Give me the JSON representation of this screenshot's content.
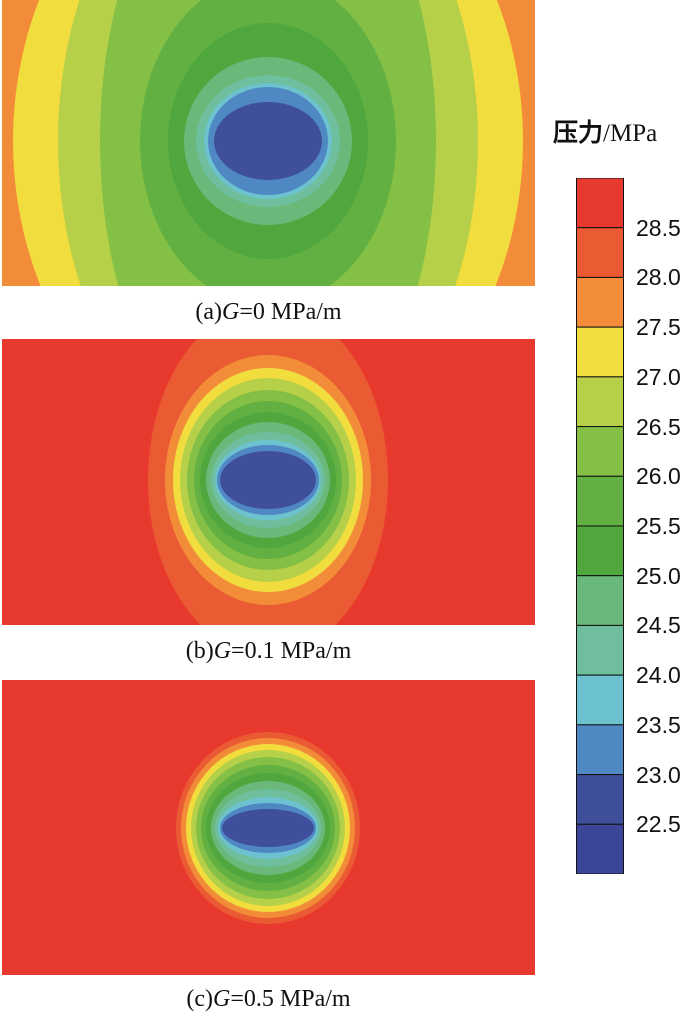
{
  "chart_data": {
    "type": "heatmap",
    "colorbar": {
      "title": "压力",
      "unit": "/MPa",
      "tick_labels": [
        "28.5",
        "28.0",
        "27.5",
        "27.0",
        "26.5",
        "26.0",
        "25.5",
        "25.0",
        "24.5",
        "24.0",
        "23.5",
        "23.0",
        "22.5"
      ],
      "levels": [
        28.75,
        28.5,
        28.0,
        27.5,
        27.0,
        26.5,
        26.0,
        25.5,
        25.0,
        24.5,
        24.0,
        23.5,
        23.0,
        22.5
      ],
      "colors": [
        "#e8392e",
        "#ea5a33",
        "#f28c38",
        "#f2dd3f",
        "#b6d04a",
        "#83c045",
        "#63b042",
        "#4fa73d",
        "#6ab87a",
        "#6fbf9f",
        "#6cc3cf",
        "#5088c4",
        "#404f9c",
        "#3b4698"
      ]
    },
    "panels": [
      {
        "caption_prefix": "(a)",
        "caption_var": "G",
        "caption_value": "=0 MPa/m",
        "gradient": 0,
        "contours": [
          {
            "level": 28.5,
            "rx": 420,
            "ry": 320
          },
          {
            "level": 28.0,
            "rx": 300,
            "ry": 320
          },
          {
            "level": 27.5,
            "rx": 255,
            "ry": 320
          },
          {
            "level": 27.0,
            "rx": 210,
            "ry": 320
          },
          {
            "level": 26.5,
            "rx": 168,
            "ry": 320
          },
          {
            "level": 26.0,
            "rx": 128,
            "ry": 165
          },
          {
            "level": 25.5,
            "rx": 100,
            "ry": 118
          },
          {
            "level": 25.0,
            "rx": 84,
            "ry": 84
          },
          {
            "level": 24.5,
            "rx": 72,
            "ry": 66
          },
          {
            "level": 24.0,
            "rx": 64,
            "ry": 58
          },
          {
            "level": 23.5,
            "rx": 60,
            "ry": 54
          },
          {
            "level": 23.0,
            "rx": 54,
            "ry": 39
          }
        ]
      },
      {
        "caption_prefix": "(b)",
        "caption_var": "G",
        "caption_value": "=0.1 MPa/m",
        "gradient": 0.1,
        "contours": [
          {
            "level": 28.5,
            "rx": 120,
            "ry": 175
          },
          {
            "level": 28.0,
            "rx": 103,
            "ry": 125
          },
          {
            "level": 27.5,
            "rx": 95,
            "ry": 112
          },
          {
            "level": 27.0,
            "rx": 88,
            "ry": 102
          },
          {
            "level": 26.5,
            "rx": 81,
            "ry": 90
          },
          {
            "level": 26.0,
            "rx": 74,
            "ry": 79
          },
          {
            "level": 25.5,
            "rx": 68,
            "ry": 68
          },
          {
            "level": 25.0,
            "rx": 62,
            "ry": 58
          },
          {
            "level": 24.5,
            "rx": 57,
            "ry": 48
          },
          {
            "level": 24.0,
            "rx": 53,
            "ry": 40
          },
          {
            "level": 23.5,
            "rx": 51,
            "ry": 35
          },
          {
            "level": 23.0,
            "rx": 48,
            "ry": 29
          }
        ]
      },
      {
        "caption_prefix": "(c)",
        "caption_var": "G",
        "caption_value": "=0.5 MPa/m",
        "gradient": 0.5,
        "contours": [
          {
            "level": 28.5,
            "rx": 92,
            "ry": 96
          },
          {
            "level": 28.0,
            "rx": 87,
            "ry": 90
          },
          {
            "level": 27.5,
            "rx": 82,
            "ry": 84
          },
          {
            "level": 27.0,
            "rx": 77,
            "ry": 78
          },
          {
            "level": 26.5,
            "rx": 72,
            "ry": 71
          },
          {
            "level": 26.0,
            "rx": 67,
            "ry": 63
          },
          {
            "level": 25.5,
            "rx": 62,
            "ry": 55
          },
          {
            "level": 25.0,
            "rx": 57,
            "ry": 47
          },
          {
            "level": 24.5,
            "rx": 53,
            "ry": 39
          },
          {
            "level": 24.0,
            "rx": 50,
            "ry": 31
          },
          {
            "level": 23.5,
            "rx": 48,
            "ry": 25
          },
          {
            "level": 23.0,
            "rx": 46,
            "ry": 19
          }
        ]
      }
    ]
  }
}
